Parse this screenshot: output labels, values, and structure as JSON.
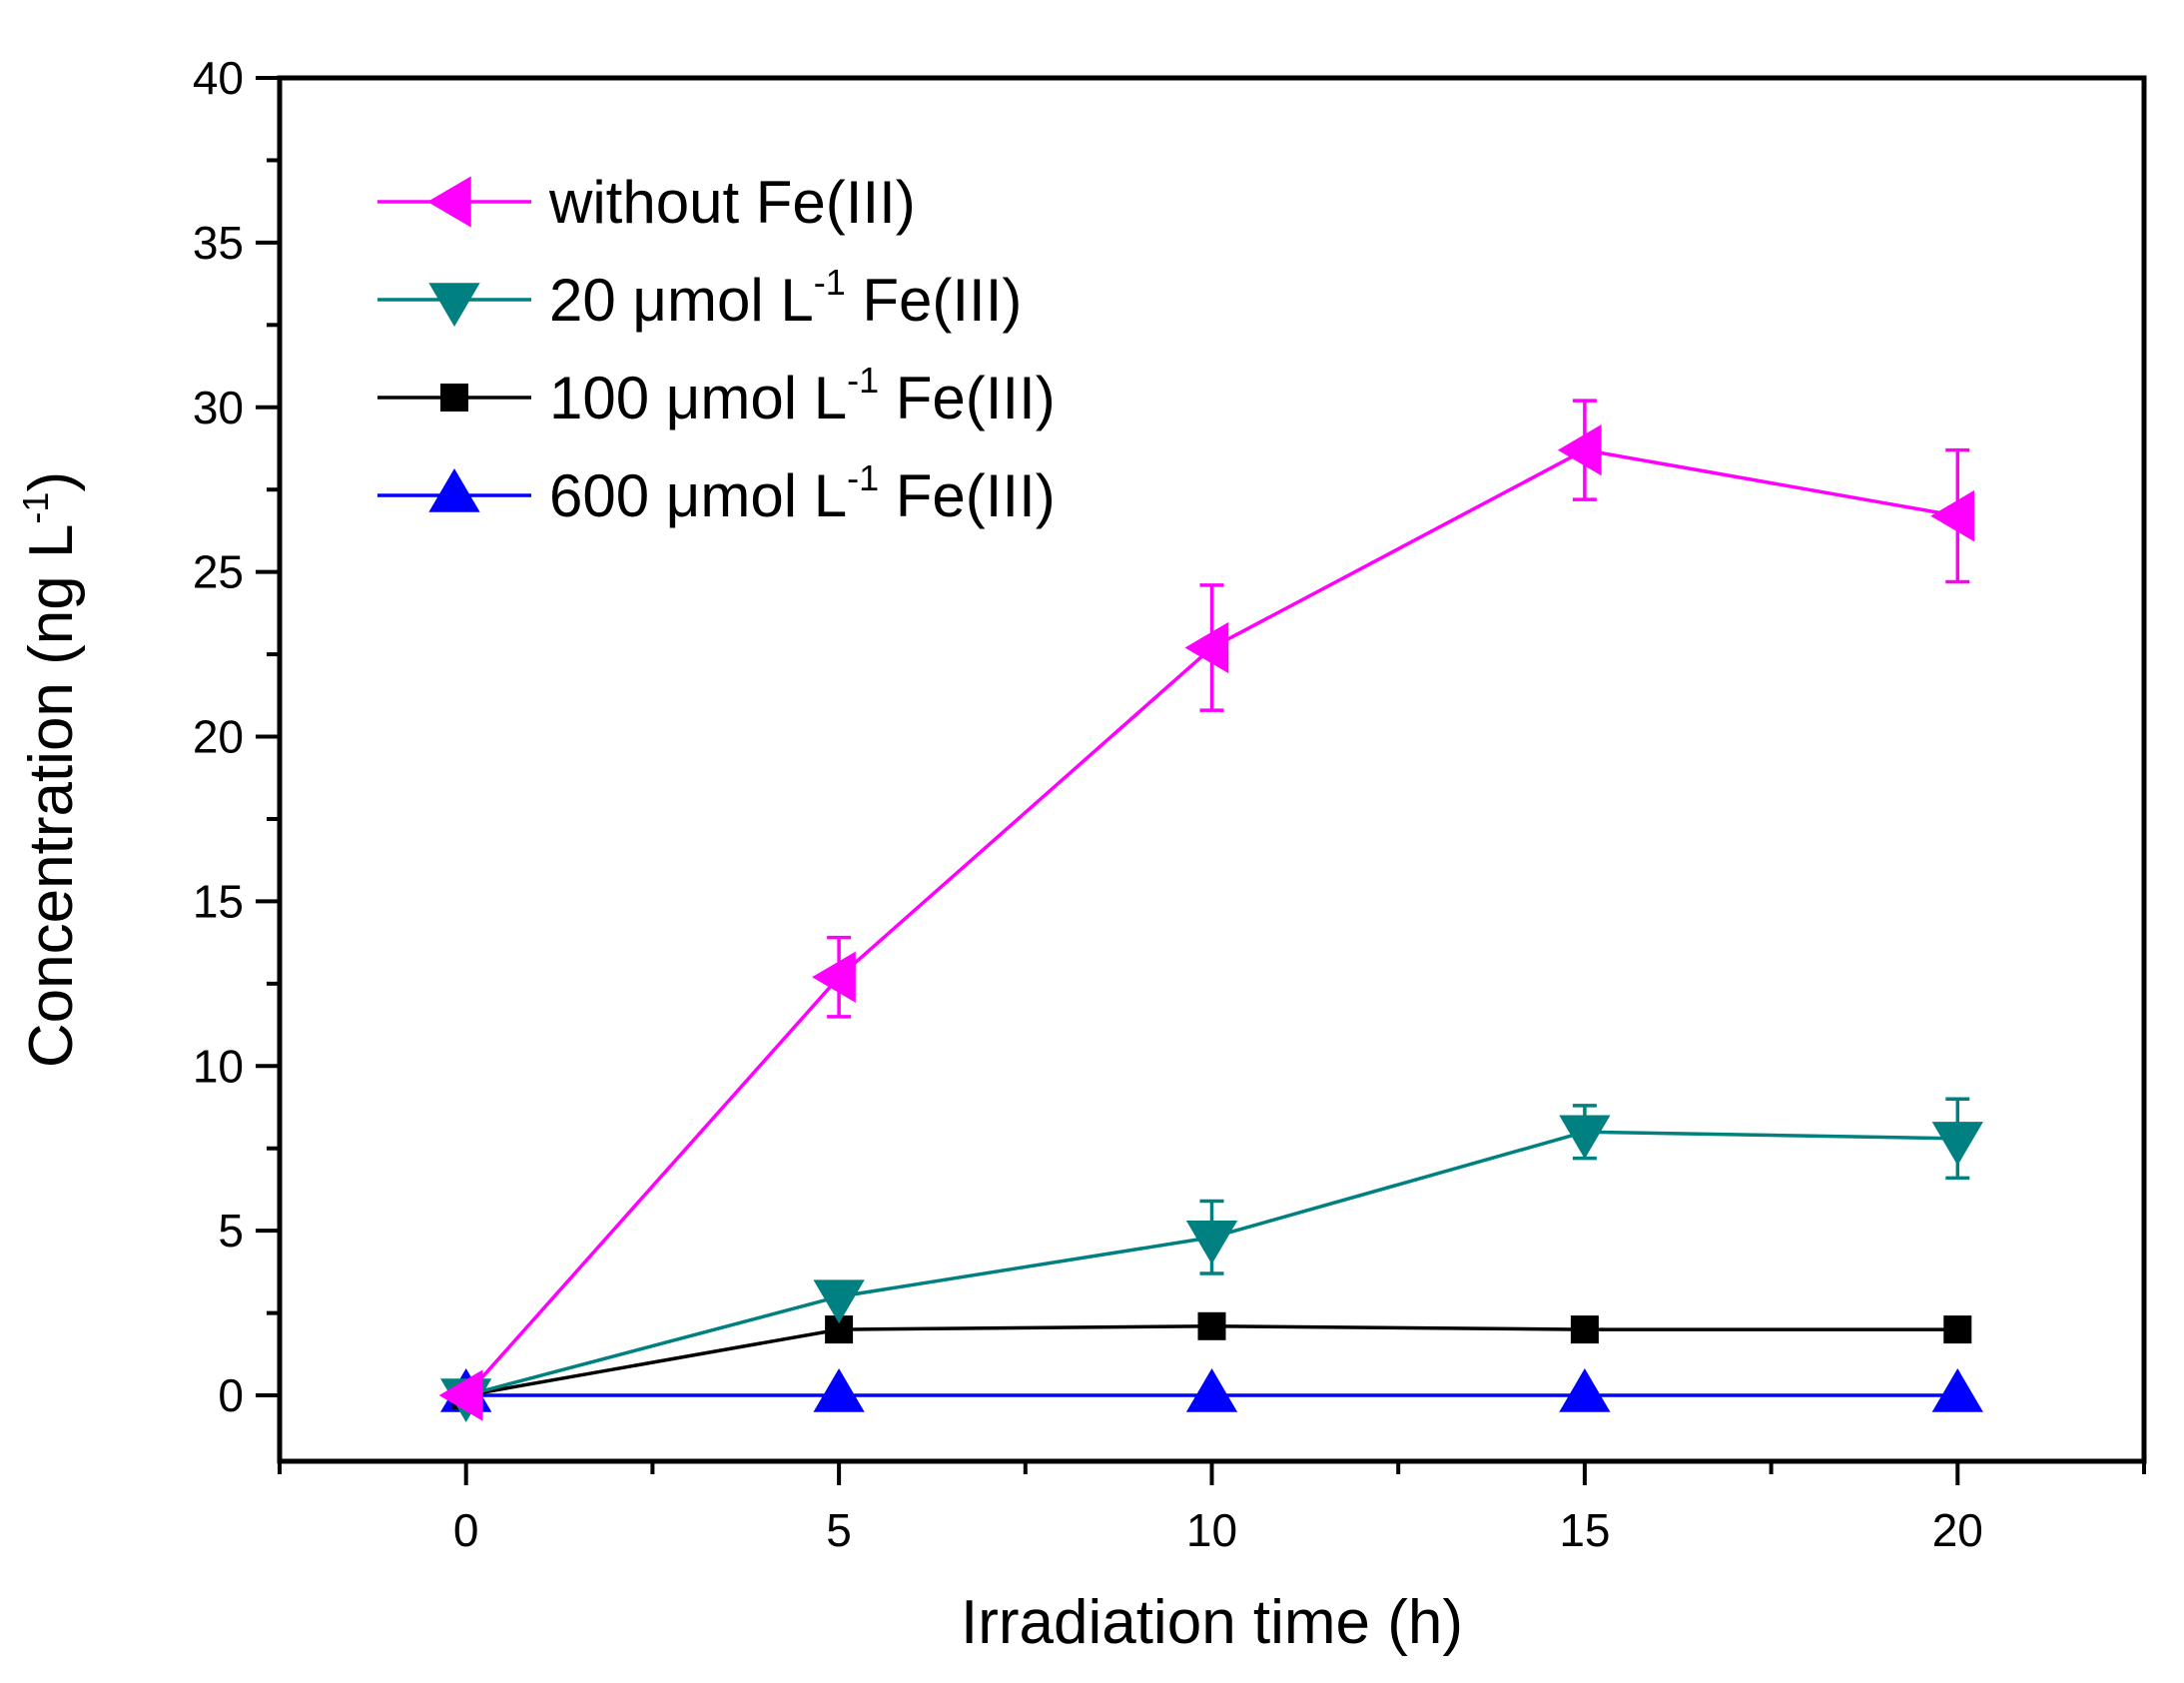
{
  "chart_data": {
    "type": "line",
    "title": "",
    "xlabel": "Irradiation time (h)",
    "ylabel": {
      "main": "Concentration (ng L",
      "sup": "-1",
      "close": ")"
    },
    "xlim": [
      -2.5,
      22.5
    ],
    "ylim": [
      -2,
      40
    ],
    "x_ticks": [
      "0",
      "5",
      "10",
      "15",
      "20"
    ],
    "y_ticks": [
      "0",
      "5",
      "10",
      "15",
      "20",
      "25",
      "30",
      "35",
      "40"
    ],
    "x_tick_values": [
      0,
      5,
      10,
      15,
      20
    ],
    "y_tick_values": [
      0,
      5,
      10,
      15,
      20,
      25,
      30,
      35,
      40
    ],
    "legend_position": "top-left",
    "series": [
      {
        "name": "without Fe(III)",
        "legend": {
          "pre": "without Fe(III)",
          "sup": "",
          "post": ""
        },
        "color": "#FF00FF",
        "marker": "triangle-left",
        "x": [
          0,
          5,
          10,
          15,
          20
        ],
        "values": [
          0,
          12.7,
          22.7,
          28.7,
          26.7
        ],
        "errors": [
          0,
          1.2,
          1.9,
          1.5,
          2.0
        ]
      },
      {
        "name": "20 μmol L-1 Fe(III)",
        "legend": {
          "pre": "20 μmol L",
          "sup": "-1",
          "post": " Fe(III)"
        },
        "color": "#008080",
        "marker": "triangle-down",
        "x": [
          0,
          5,
          10,
          15,
          20
        ],
        "values": [
          0,
          3.0,
          4.8,
          8.0,
          7.8
        ],
        "errors": [
          0,
          0,
          1.1,
          0.8,
          1.2
        ]
      },
      {
        "name": "100 μmol L-1 Fe(III)",
        "legend": {
          "pre": "100 μmol L",
          "sup": "-1",
          "post": " Fe(III)"
        },
        "color": "#000000",
        "marker": "square",
        "x": [
          0,
          5,
          10,
          15,
          20
        ],
        "values": [
          0,
          2.0,
          2.1,
          2.0,
          2.0
        ],
        "errors": [
          0,
          0,
          0,
          0,
          0
        ]
      },
      {
        "name": "600 μmol L-1 Fe(III)",
        "legend": {
          "pre": "600 μmol L",
          "sup": "-1",
          "post": " Fe(III)"
        },
        "color": "#0000FF",
        "marker": "triangle-up",
        "x": [
          0,
          5,
          10,
          15,
          20
        ],
        "values": [
          0,
          0,
          0,
          0,
          0
        ],
        "errors": [
          0,
          0,
          0,
          0,
          0
        ]
      }
    ]
  }
}
